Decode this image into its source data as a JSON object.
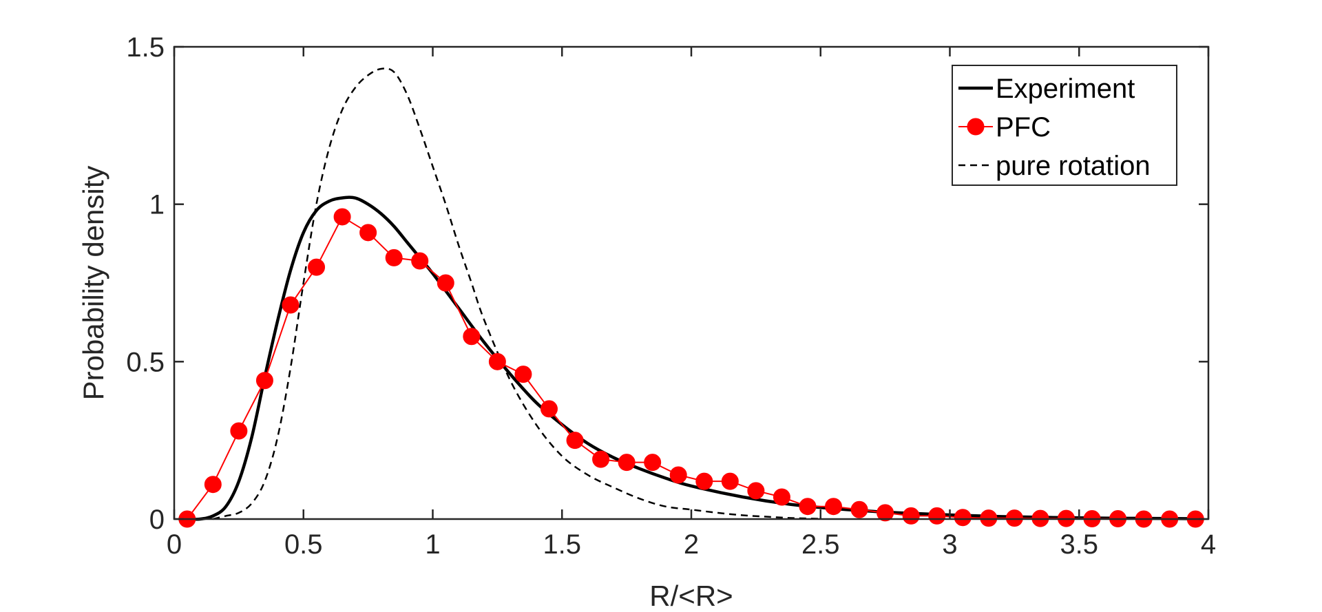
{
  "chart_data": {
    "type": "line",
    "title": "",
    "xlabel": "R/<R>",
    "ylabel": "Probability density",
    "xlim": [
      0,
      4
    ],
    "ylim": [
      0,
      1.5
    ],
    "xticks": [
      0,
      0.5,
      1,
      1.5,
      2,
      2.5,
      3,
      3.5,
      4
    ],
    "xtick_labels": [
      "0",
      "0.5",
      "1",
      "1.5",
      "2",
      "2.5",
      "3",
      "3.5",
      "4"
    ],
    "yticks": [
      0,
      0.5,
      1,
      1.5
    ],
    "ytick_labels": [
      "0",
      "0.5",
      "1",
      "1.5"
    ],
    "grid": false,
    "legend_position": "top-right",
    "series": [
      {
        "name": "Experiment",
        "style": "solid",
        "color": "#000000",
        "x": [
          0.05,
          0.1,
          0.15,
          0.2,
          0.25,
          0.3,
          0.35,
          0.4,
          0.45,
          0.5,
          0.55,
          0.6,
          0.65,
          0.7,
          0.75,
          0.8,
          0.85,
          0.9,
          0.95,
          1.0,
          1.1,
          1.2,
          1.3,
          1.4,
          1.5,
          1.6,
          1.7,
          1.8,
          1.9,
          2.0,
          2.2,
          2.4,
          2.6,
          2.8,
          3.0,
          3.2,
          3.4,
          3.6,
          3.8,
          3.95
        ],
        "y": [
          0.0,
          0.0,
          0.01,
          0.04,
          0.12,
          0.26,
          0.45,
          0.63,
          0.79,
          0.91,
          0.98,
          1.01,
          1.02,
          1.02,
          1.0,
          0.97,
          0.93,
          0.88,
          0.83,
          0.78,
          0.67,
          0.56,
          0.46,
          0.37,
          0.3,
          0.24,
          0.195,
          0.16,
          0.13,
          0.105,
          0.07,
          0.045,
          0.03,
          0.02,
          0.013,
          0.008,
          0.005,
          0.003,
          0.002,
          0.001
        ]
      },
      {
        "name": "PFC",
        "style": "solid-markers",
        "color": "#ff0000",
        "x": [
          0.05,
          0.15,
          0.25,
          0.35,
          0.45,
          0.55,
          0.65,
          0.75,
          0.85,
          0.95,
          1.05,
          1.15,
          1.25,
          1.35,
          1.45,
          1.55,
          1.65,
          1.75,
          1.85,
          1.95,
          2.05,
          2.15,
          2.25,
          2.35,
          2.45,
          2.55,
          2.65,
          2.75,
          2.85,
          2.95,
          3.05,
          3.15,
          3.25,
          3.35,
          3.45,
          3.55,
          3.65,
          3.75,
          3.85,
          3.95
        ],
        "y": [
          0.0,
          0.11,
          0.28,
          0.44,
          0.68,
          0.8,
          0.96,
          0.91,
          0.83,
          0.82,
          0.75,
          0.58,
          0.5,
          0.46,
          0.35,
          0.25,
          0.19,
          0.18,
          0.18,
          0.14,
          0.12,
          0.12,
          0.09,
          0.07,
          0.04,
          0.04,
          0.03,
          0.02,
          0.01,
          0.01,
          0.005,
          0.003,
          0.003,
          0.002,
          0.002,
          0.001,
          0.001,
          0.0,
          0.0,
          0.0
        ]
      },
      {
        "name": "pure rotation",
        "style": "dashed",
        "color": "#000000",
        "x": [
          0.15,
          0.2,
          0.25,
          0.3,
          0.35,
          0.4,
          0.45,
          0.5,
          0.55,
          0.6,
          0.65,
          0.7,
          0.75,
          0.8,
          0.85,
          0.9,
          0.95,
          1.0,
          1.05,
          1.1,
          1.15,
          1.2,
          1.3,
          1.4,
          1.5,
          1.6,
          1.7,
          1.8,
          1.9,
          2.0,
          2.1,
          2.2,
          2.3,
          2.4,
          2.5
        ],
        "y": [
          0.0,
          0.01,
          0.02,
          0.05,
          0.12,
          0.26,
          0.48,
          0.75,
          1.0,
          1.18,
          1.3,
          1.37,
          1.41,
          1.43,
          1.42,
          1.35,
          1.24,
          1.12,
          1.0,
          0.87,
          0.75,
          0.63,
          0.44,
          0.3,
          0.2,
          0.14,
          0.1,
          0.065,
          0.04,
          0.03,
          0.02,
          0.012,
          0.007,
          0.003,
          0.001
        ]
      }
    ]
  }
}
